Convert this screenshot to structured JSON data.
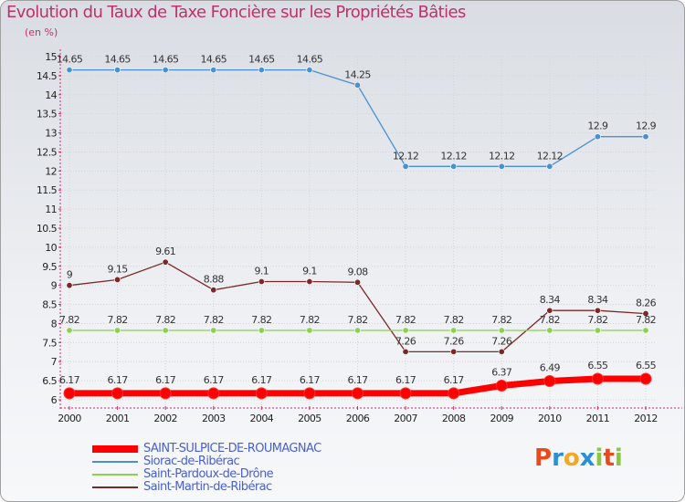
{
  "title": "Evolution du Taux de Taxe Foncière sur les Propriétés Bâties",
  "unit_label": "(en %)",
  "logo": {
    "text": "Proxiti",
    "colors": [
      "#e84a1c",
      "#2b8fd6",
      "#f5a623",
      "#2b8fd6",
      "#8cc63f",
      "#e84a1c",
      "#8cc63f"
    ]
  },
  "chart_data": {
    "type": "line",
    "title": "Evolution du Taux de Taxe Foncière sur les Propriétés Bâties",
    "ylabel": "(en %)",
    "xlabel": "",
    "ylim": [
      6,
      15
    ],
    "ytick_step": 0.5,
    "x": [
      "2000",
      "2001",
      "2002",
      "2003",
      "2004",
      "2005",
      "2006",
      "2007",
      "2008",
      "2009",
      "2010",
      "2011",
      "2012"
    ],
    "series": [
      {
        "name": "SAINT-SULPICE-DE-ROUMAGNAC",
        "color": "#ff0000",
        "values": [
          6.17,
          6.17,
          6.17,
          6.17,
          6.17,
          6.17,
          6.17,
          6.17,
          6.17,
          6.37,
          6.49,
          6.55,
          6.55
        ],
        "labels": [
          "6.17",
          "6.17",
          "6.17",
          "6.17",
          "6.17",
          "6.17",
          "6.17",
          "6.17",
          "6.17",
          "6.37",
          "6.49",
          "6.55",
          "6.55"
        ]
      },
      {
        "name": "Siorac-de-Ribérac",
        "color": "#4a90d0",
        "values": [
          14.65,
          14.65,
          14.65,
          14.65,
          14.65,
          14.65,
          14.25,
          12.12,
          12.12,
          12.12,
          12.12,
          12.9,
          12.9
        ],
        "labels": [
          "14.65",
          "14.65",
          "14.65",
          "14.65",
          "14.65",
          "14.65",
          "14.25",
          "12.12",
          "12.12",
          "12.12",
          "12.12",
          "12.9",
          "12.9"
        ]
      },
      {
        "name": "Saint-Pardoux-de-Drône",
        "color": "#8cd050",
        "values": [
          7.82,
          7.82,
          7.82,
          7.82,
          7.82,
          7.82,
          7.82,
          7.82,
          7.82,
          7.82,
          7.82,
          7.82,
          7.82
        ],
        "labels": [
          "7.82",
          "7.82",
          "7.82",
          "7.82",
          "7.82",
          "7.82",
          "7.82",
          "7.82",
          "7.82",
          "7.82",
          "7.82",
          "7.82",
          "7.82"
        ]
      },
      {
        "name": "Saint-Martin-de-Ribérac",
        "color": "#7a2828",
        "values": [
          9.0,
          9.15,
          9.61,
          8.88,
          9.1,
          9.1,
          9.08,
          7.26,
          7.26,
          7.26,
          8.34,
          8.34,
          8.26
        ],
        "labels": [
          "9",
          "9.15",
          "9.61",
          "8.88",
          "9.1",
          "9.1",
          "9.08",
          "7.26",
          "7.26",
          "7.26",
          "8.34",
          "8.34",
          "8.26"
        ]
      }
    ],
    "legend_position": "bottom-left"
  }
}
